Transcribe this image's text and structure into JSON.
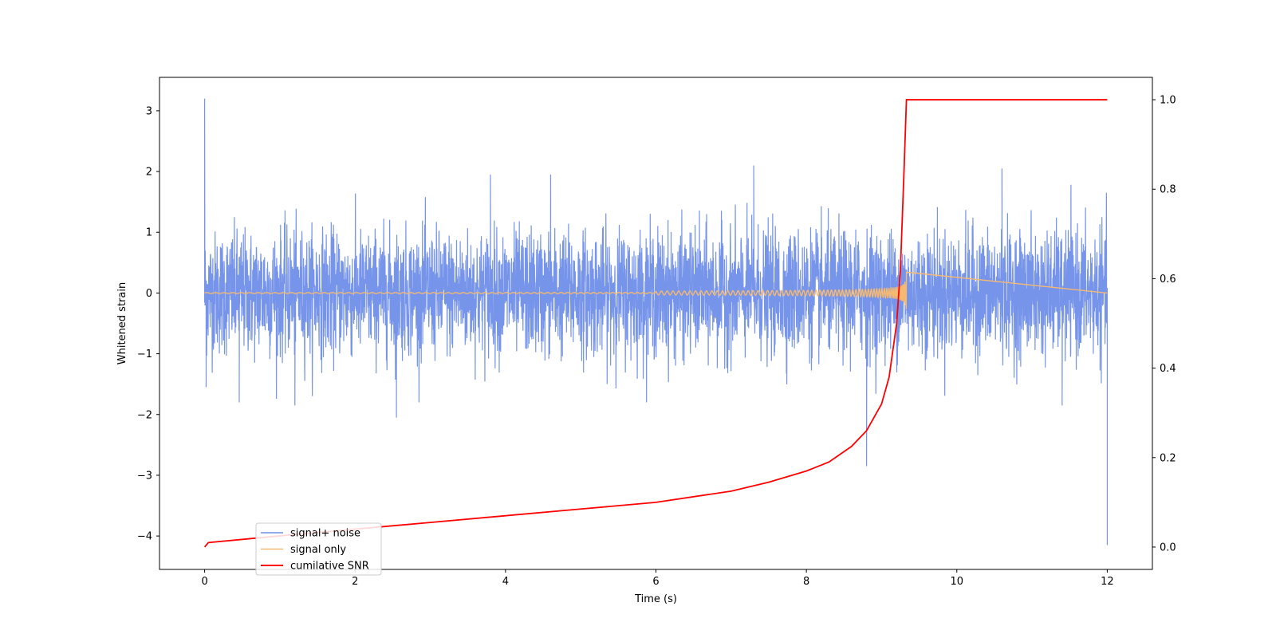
{
  "chart_data": {
    "type": "line",
    "title": "",
    "xlabel": "Time (s)",
    "ylabel": "Whitened strain",
    "ylabel_right": "",
    "xlim": [
      -0.6,
      12.6
    ],
    "ylim": [
      -4.55,
      3.55
    ],
    "ylim_right": [
      -0.05,
      1.05
    ],
    "grid": false,
    "legend_position": "lower-left",
    "x_ticks": [
      0,
      2,
      4,
      6,
      8,
      10,
      12
    ],
    "x_tick_labels": [
      "0",
      "2",
      "4",
      "6",
      "8",
      "10",
      "12"
    ],
    "y_ticks": [
      -4,
      -3,
      -2,
      -1,
      0,
      1,
      2,
      3
    ],
    "y_tick_labels": [
      "−4",
      "−3",
      "−2",
      "−1",
      "0",
      "1",
      "2",
      "3"
    ],
    "y_right_ticks": [
      0.0,
      0.2,
      0.4,
      0.6,
      0.8,
      1.0
    ],
    "y_right_tick_labels": [
      "0.0",
      "0.2",
      "0.4",
      "0.6",
      "0.8",
      "1.0"
    ],
    "series": [
      {
        "name": "signal+ noise",
        "color": "#6f8ee8",
        "axis": "left",
        "kind": "noise",
        "x_range": [
          0,
          12
        ],
        "amplitude_sigma": 0.5,
        "notable_peaks": [
          {
            "x": 0.0,
            "y": 3.2
          },
          {
            "x": 0.02,
            "y": -1.55
          },
          {
            "x": 0.46,
            "y": -1.8
          },
          {
            "x": 1.2,
            "y": -1.85
          },
          {
            "x": 2.55,
            "y": -2.05
          },
          {
            "x": 3.8,
            "y": 1.95
          },
          {
            "x": 4.6,
            "y": 1.95
          },
          {
            "x": 7.3,
            "y": 2.1
          },
          {
            "x": 8.8,
            "y": -2.85
          },
          {
            "x": 10.6,
            "y": 2.05
          },
          {
            "x": 11.4,
            "y": -1.85
          },
          {
            "x": 12.0,
            "y": -4.15
          },
          {
            "x": 12.0,
            "y": -2.45
          }
        ]
      },
      {
        "name": "signal only",
        "color": "#f5b972",
        "axis": "left",
        "kind": "chirp",
        "x_range": [
          0,
          9.33
        ],
        "merger_time": 9.33,
        "peak_amplitude": 0.35
      },
      {
        "name": "cumilative SNR",
        "color": "#ff0000",
        "axis": "right",
        "kind": "line",
        "x": [
          0,
          0.05,
          1,
          2,
          3,
          4,
          5,
          6,
          7,
          7.5,
          8,
          8.3,
          8.6,
          8.8,
          9.0,
          9.1,
          9.2,
          9.25,
          9.3,
          9.33,
          10,
          11,
          12
        ],
        "y": [
          0.0,
          0.01,
          0.025,
          0.04,
          0.055,
          0.07,
          0.085,
          0.1,
          0.125,
          0.145,
          0.17,
          0.19,
          0.225,
          0.26,
          0.32,
          0.38,
          0.5,
          0.62,
          0.85,
          1.0,
          1.0,
          1.0,
          1.0
        ]
      }
    ]
  }
}
